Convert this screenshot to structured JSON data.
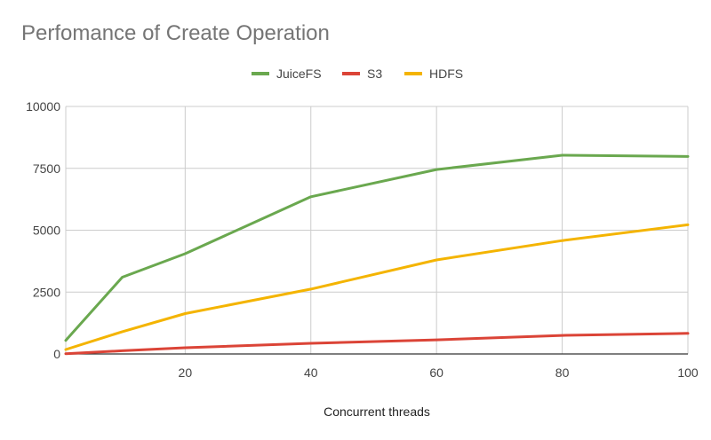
{
  "chart_data": {
    "type": "line",
    "title": "Perfomance of Create Operation",
    "xlabel": "Concurrent threads",
    "ylabel": "",
    "x": [
      1,
      10,
      20,
      40,
      60,
      80,
      100
    ],
    "xlim": [
      1,
      100
    ],
    "ylim": [
      0,
      10000
    ],
    "x_ticks": [
      20,
      40,
      60,
      80,
      100
    ],
    "y_ticks": [
      0,
      2500,
      5000,
      7500,
      10000
    ],
    "grid": true,
    "legend_position": "top",
    "series": [
      {
        "name": "JuiceFS",
        "color": "#6aa84f",
        "values": [
          550,
          3100,
          4050,
          6350,
          7450,
          8030,
          7980
        ]
      },
      {
        "name": "S3",
        "color": "#db4437",
        "values": [
          10,
          130,
          250,
          430,
          570,
          750,
          830
        ]
      },
      {
        "name": "HDFS",
        "color": "#f4b400",
        "values": [
          180,
          900,
          1630,
          2620,
          3800,
          4580,
          5220
        ]
      }
    ]
  }
}
